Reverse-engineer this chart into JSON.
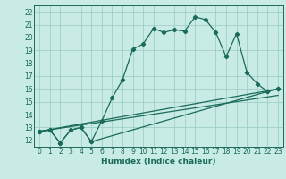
{
  "xlabel": "Humidex (Indice chaleur)",
  "bg_color": "#c8ebe5",
  "grid_color": "#a0cfc7",
  "line_color": "#1a6b5a",
  "xlim": [
    -0.5,
    23.5
  ],
  "ylim": [
    11.5,
    22.5
  ],
  "xticks": [
    0,
    1,
    2,
    3,
    4,
    5,
    6,
    7,
    8,
    9,
    10,
    11,
    12,
    13,
    14,
    15,
    16,
    17,
    18,
    19,
    20,
    21,
    22,
    23
  ],
  "yticks": [
    12,
    13,
    14,
    15,
    16,
    17,
    18,
    19,
    20,
    21,
    22
  ],
  "line1_x": [
    0,
    1,
    2,
    3,
    4,
    5,
    6,
    7,
    8,
    9,
    10,
    11,
    12,
    13,
    14,
    15,
    16,
    17,
    18,
    19,
    20,
    21,
    22,
    23
  ],
  "line1_y": [
    12.7,
    12.8,
    11.8,
    12.8,
    13.0,
    11.9,
    13.5,
    15.3,
    16.7,
    19.1,
    19.5,
    20.7,
    20.4,
    20.6,
    20.5,
    21.6,
    21.4,
    20.4,
    18.5,
    20.3,
    17.3,
    16.4,
    15.8,
    16.0
  ],
  "line2_x": [
    0,
    1,
    2,
    3,
    4,
    5,
    22,
    23
  ],
  "line2_y": [
    12.7,
    12.8,
    11.8,
    12.8,
    13.0,
    11.9,
    15.8,
    16.0
  ],
  "line3_x": [
    0,
    23
  ],
  "line3_y": [
    12.7,
    16.0
  ],
  "line4_x": [
    0,
    23
  ],
  "line4_y": [
    12.7,
    15.5
  ],
  "tick_fontsize": 5.5,
  "xlabel_fontsize": 6.5
}
